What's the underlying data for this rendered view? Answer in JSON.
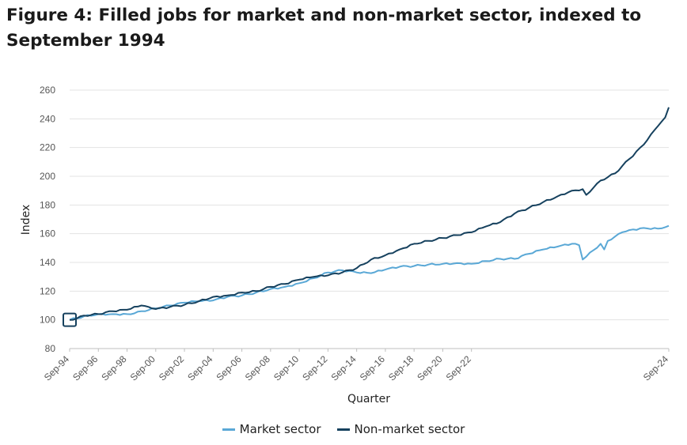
{
  "title": "Figure 4: Filled jobs for market and non-market sector, indexed to September 1994",
  "colors": {
    "market": "#5aa8d6",
    "non_market": "#16415e",
    "grid": "#e3e3e3",
    "axis": "#bfbfbf"
  },
  "chart_data": {
    "type": "line",
    "xlabel": "Quarter",
    "ylabel": "Index",
    "ylim": [
      80,
      260
    ],
    "yticks": [
      80,
      100,
      120,
      140,
      160,
      180,
      200,
      220,
      240,
      260
    ],
    "xtick_labels": [
      "Sep-94",
      "Sep-96",
      "Sep-98",
      "Sep-00",
      "Sep-02",
      "Sep-04",
      "Sep-06",
      "Sep-08",
      "Sep-10",
      "Sep-12",
      "Sep-14",
      "Sep-16",
      "Sep-18",
      "Sep-20",
      "Sep-22",
      "Sep-24"
    ],
    "grid": true,
    "legend_position": "bottom",
    "highlight": {
      "x": "Sep-94",
      "y": 100
    },
    "series": [
      {
        "name": "Market sector",
        "color_key": "market",
        "keypoints": [
          [
            0,
            100
          ],
          [
            4,
            102.5
          ],
          [
            8,
            104
          ],
          [
            12,
            104
          ],
          [
            16,
            104
          ],
          [
            18,
            104.5
          ],
          [
            20,
            106
          ],
          [
            24,
            108
          ],
          [
            28,
            110
          ],
          [
            32,
            112
          ],
          [
            36,
            113
          ],
          [
            40,
            113.5
          ],
          [
            44,
            116
          ],
          [
            48,
            117
          ],
          [
            52,
            119
          ],
          [
            56,
            121.5
          ],
          [
            60,
            123
          ],
          [
            64,
            125.5
          ],
          [
            68,
            129
          ],
          [
            72,
            133
          ],
          [
            76,
            134.5
          ],
          [
            80,
            133
          ],
          [
            84,
            132.5
          ],
          [
            88,
            135
          ],
          [
            92,
            137
          ],
          [
            96,
            137.5
          ],
          [
            100,
            138.5
          ],
          [
            104,
            139
          ],
          [
            108,
            139.5
          ],
          [
            112,
            139
          ],
          [
            116,
            141
          ],
          [
            120,
            142.5
          ],
          [
            124,
            142.5
          ],
          [
            128,
            146
          ],
          [
            132,
            149
          ],
          [
            136,
            151
          ],
          [
            140,
            153
          ],
          [
            142,
            152
          ],
          [
            143,
            142
          ],
          [
            144,
            144
          ],
          [
            148,
            153
          ],
          [
            149,
            149
          ],
          [
            150,
            155
          ],
          [
            152,
            158
          ],
          [
            154,
            161
          ],
          [
            156,
            162.5
          ],
          [
            160,
            164
          ],
          [
            164,
            163.5
          ],
          [
            167,
            165.5
          ]
        ]
      },
      {
        "name": "Non-market sector",
        "color_key": "non_market",
        "keypoints": [
          [
            0,
            100
          ],
          [
            2,
            101
          ],
          [
            4,
            103
          ],
          [
            8,
            104
          ],
          [
            12,
            106
          ],
          [
            16,
            107
          ],
          [
            20,
            110
          ],
          [
            22,
            109
          ],
          [
            24,
            107.5
          ],
          [
            28,
            109
          ],
          [
            32,
            110.5
          ],
          [
            36,
            113
          ],
          [
            40,
            116
          ],
          [
            44,
            117
          ],
          [
            48,
            119
          ],
          [
            52,
            120
          ],
          [
            56,
            123
          ],
          [
            60,
            125
          ],
          [
            64,
            128
          ],
          [
            68,
            130
          ],
          [
            72,
            131
          ],
          [
            76,
            133
          ],
          [
            80,
            136
          ],
          [
            84,
            142
          ],
          [
            88,
            145
          ],
          [
            92,
            149
          ],
          [
            96,
            153
          ],
          [
            100,
            155
          ],
          [
            104,
            157
          ],
          [
            108,
            159
          ],
          [
            112,
            161
          ],
          [
            116,
            165
          ],
          [
            120,
            168
          ],
          [
            124,
            174
          ],
          [
            128,
            178
          ],
          [
            132,
            182
          ],
          [
            136,
            186
          ],
          [
            140,
            190
          ],
          [
            143,
            191
          ],
          [
            144,
            187
          ],
          [
            146,
            192
          ],
          [
            148,
            197
          ],
          [
            152,
            202
          ],
          [
            156,
            212
          ],
          [
            160,
            222
          ],
          [
            162,
            229
          ],
          [
            164,
            235
          ],
          [
            166,
            241
          ],
          [
            167,
            248
          ]
        ]
      }
    ]
  }
}
